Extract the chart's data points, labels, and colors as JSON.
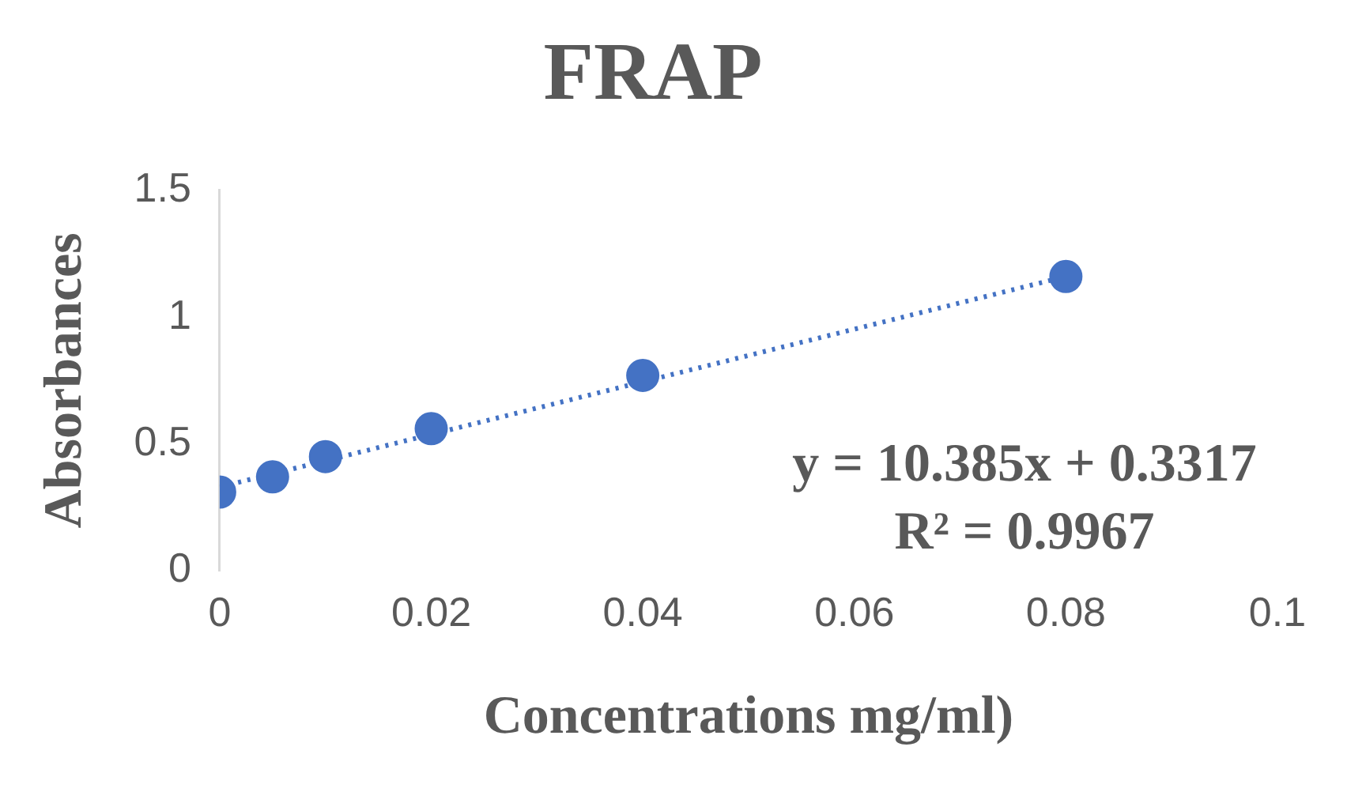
{
  "chart_data": {
    "type": "scatter",
    "title": "FRAP",
    "xlabel": "Concentrations mg/ml)",
    "ylabel": "Absorbances",
    "xlim": [
      0,
      0.1
    ],
    "xticks": [
      0,
      0.02,
      0.04,
      0.06,
      0.08,
      0.1
    ],
    "ylim": [
      0,
      1.5
    ],
    "yticks": [
      0,
      0.5,
      1,
      1.5
    ],
    "grid": false,
    "legend": false,
    "marker": "circle",
    "series": [
      {
        "type": "scatter",
        "color": "#4472c4",
        "x": [
          0,
          0.005,
          0.01,
          0.02,
          0.04,
          0.08
        ],
        "values": [
          0.31,
          0.37,
          0.45,
          0.56,
          0.77,
          1.16
        ]
      },
      {
        "type": "line",
        "color": "#4472c4",
        "line_style": "dotted",
        "marker": "none",
        "x": [
          0,
          0.08
        ],
        "values": [
          0.33,
          1.16
        ]
      }
    ],
    "annotations": [
      "y = 10.385x + 0.3317",
      "R² = 0.9967"
    ]
  }
}
